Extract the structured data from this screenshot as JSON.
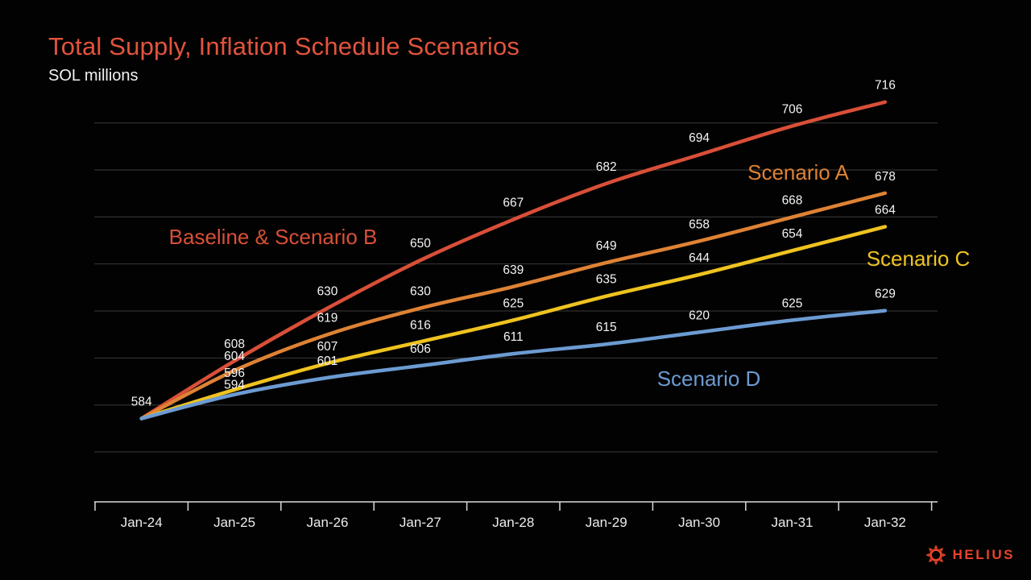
{
  "header": {
    "title": "Total Supply, Inflation Schedule Scenarios",
    "subtitle": "SOL millions"
  },
  "chart_data": {
    "type": "line",
    "title": "Total Supply, Inflation Schedule Scenarios",
    "subtitle": "SOL millions",
    "categories": [
      "Jan-24",
      "Jan-25",
      "Jan-26",
      "Jan-27",
      "Jan-28",
      "Jan-29",
      "Jan-30",
      "Jan-31",
      "Jan-32"
    ],
    "series": [
      {
        "name": "Baseline & Scenario B",
        "color": "#d94f38",
        "values": [
          584,
          608,
          630,
          650,
          667,
          682,
          694,
          706,
          716
        ]
      },
      {
        "name": "Scenario A",
        "color": "#de8234",
        "values": [
          584,
          604,
          619,
          630,
          639,
          649,
          658,
          668,
          678
        ]
      },
      {
        "name": "Scenario C",
        "color": "#efc31f",
        "values": [
          584,
          596,
          607,
          616,
          625,
          635,
          644,
          654,
          664
        ]
      },
      {
        "name": "Scenario D",
        "color": "#6c9bd2",
        "values": [
          584,
          594,
          601,
          606,
          611,
          615,
          620,
          625,
          629
        ]
      }
    ],
    "data_labels_visible": true,
    "shared_start_label": "584",
    "grid": "horizontal",
    "y_axis_labels_visible": false,
    "legend_position": "inline-annotations",
    "annotation_labels": [
      "Baseline & Scenario B",
      "Scenario A",
      "Scenario C",
      "Scenario D"
    ],
    "background": "#000000",
    "title_color": "#e2543d",
    "gridline_color": "#3a3a3a",
    "axis_color": "#d9d9d9",
    "data_label_color": "#f5f5f5"
  },
  "branding": {
    "logo_text": "HELIUS",
    "logo_color": "#e8432a"
  }
}
